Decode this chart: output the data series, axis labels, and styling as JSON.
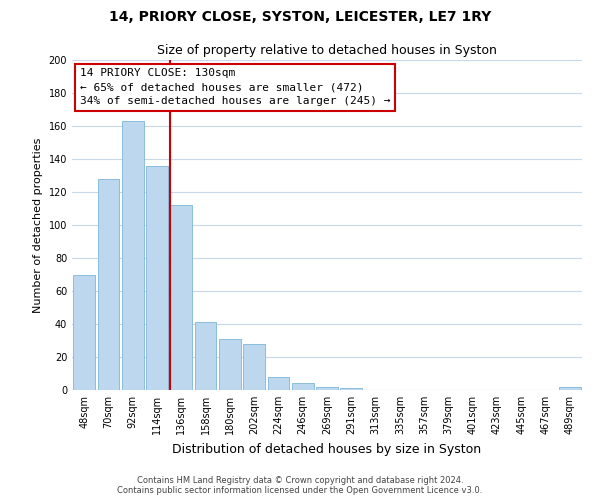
{
  "title": "14, PRIORY CLOSE, SYSTON, LEICESTER, LE7 1RY",
  "subtitle": "Size of property relative to detached houses in Syston",
  "xlabel": "Distribution of detached houses by size in Syston",
  "ylabel": "Number of detached properties",
  "bar_labels": [
    "48sqm",
    "70sqm",
    "92sqm",
    "114sqm",
    "136sqm",
    "158sqm",
    "180sqm",
    "202sqm",
    "224sqm",
    "246sqm",
    "269sqm",
    "291sqm",
    "313sqm",
    "335sqm",
    "357sqm",
    "379sqm",
    "401sqm",
    "423sqm",
    "445sqm",
    "467sqm",
    "489sqm"
  ],
  "bar_values": [
    70,
    128,
    163,
    136,
    112,
    41,
    31,
    28,
    8,
    4,
    2,
    1,
    0,
    0,
    0,
    0,
    0,
    0,
    0,
    0,
    2
  ],
  "bar_color": "#bdd7ee",
  "bar_edge_color": "#7eb6d9",
  "marker_line_color": "#cc0000",
  "annotation_text_line1": "14 PRIORY CLOSE: 130sqm",
  "annotation_text_line2": "← 65% of detached houses are smaller (472)",
  "annotation_text_line3": "34% of semi-detached houses are larger (245) →",
  "annotation_box_color": "#ffffff",
  "annotation_border_color": "#cc0000",
  "ylim": [
    0,
    200
  ],
  "yticks": [
    0,
    20,
    40,
    60,
    80,
    100,
    120,
    140,
    160,
    180,
    200
  ],
  "footer_line1": "Contains HM Land Registry data © Crown copyright and database right 2024.",
  "footer_line2": "Contains public sector information licensed under the Open Government Licence v3.0.",
  "bg_color": "#ffffff",
  "grid_color": "#c8d8e8",
  "title_fontsize": 10,
  "subtitle_fontsize": 9,
  "ylabel_fontsize": 8,
  "xlabel_fontsize": 9,
  "tick_fontsize": 7,
  "annotation_fontsize": 8,
  "footer_fontsize": 6
}
